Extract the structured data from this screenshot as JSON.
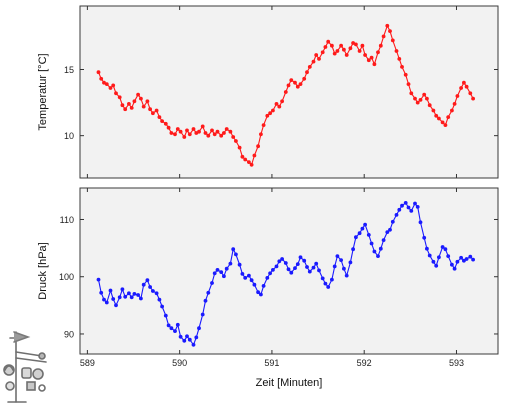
{
  "chart_data": [
    {
      "type": "line",
      "title": "",
      "ylabel": "Temperatur [°C]",
      "xlabel": "",
      "xlim": [
        588.92,
        593.45
      ],
      "ylim": [
        6.8,
        19.8
      ],
      "xticks": [
        589,
        590,
        591,
        592,
        593
      ],
      "yticks": [
        10,
        15
      ],
      "ytick_labels": [
        "10",
        "15"
      ],
      "grid": false,
      "series": [
        {
          "color": "#ff1a1a",
          "marker": "circle",
          "x": [
            589.12,
            589.15,
            589.18,
            589.21,
            589.25,
            589.28,
            589.31,
            589.35,
            589.38,
            589.41,
            589.45,
            589.48,
            589.51,
            589.55,
            589.58,
            589.61,
            589.65,
            589.68,
            589.71,
            589.75,
            589.78,
            589.81,
            589.85,
            589.88,
            589.91,
            589.95,
            589.98,
            590.01,
            590.05,
            590.08,
            590.11,
            590.15,
            590.18,
            590.21,
            590.25,
            590.28,
            590.31,
            590.35,
            590.38,
            590.41,
            590.45,
            590.48,
            590.51,
            590.55,
            590.58,
            590.61,
            590.65,
            590.68,
            590.71,
            590.75,
            590.78,
            590.81,
            590.85,
            590.88,
            590.91,
            590.95,
            590.98,
            591.01,
            591.05,
            591.08,
            591.11,
            591.15,
            591.18,
            591.21,
            591.25,
            591.28,
            591.31,
            591.35,
            591.38,
            591.41,
            591.45,
            591.48,
            591.51,
            591.55,
            591.58,
            591.61,
            591.65,
            591.68,
            591.71,
            591.75,
            591.78,
            591.81,
            591.85,
            591.88,
            591.91,
            591.95,
            591.98,
            592.01,
            592.05,
            592.08,
            592.11,
            592.15,
            592.18,
            592.21,
            592.25,
            592.28,
            592.31,
            592.35,
            592.38,
            592.41,
            592.45,
            592.48,
            592.51,
            592.55,
            592.58,
            592.61,
            592.65,
            592.68,
            592.71,
            592.75,
            592.78,
            592.81,
            592.85,
            592.88,
            592.91,
            592.95,
            592.98,
            593.01,
            593.05,
            593.08,
            593.11,
            593.15,
            593.18
          ],
          "y": [
            14.8,
            14.3,
            14.0,
            13.9,
            13.6,
            13.8,
            13.2,
            12.9,
            12.3,
            12.0,
            12.4,
            12.1,
            12.6,
            13.1,
            12.8,
            12.2,
            12.6,
            12.0,
            11.7,
            11.9,
            11.4,
            11.1,
            10.9,
            10.6,
            10.2,
            10.1,
            10.5,
            10.3,
            9.9,
            10.4,
            10.1,
            10.5,
            10.2,
            10.3,
            10.7,
            10.2,
            10.0,
            10.4,
            10.1,
            10.3,
            10.0,
            10.2,
            10.5,
            10.3,
            9.9,
            9.6,
            9.1,
            8.4,
            8.2,
            8.0,
            7.8,
            8.5,
            9.2,
            10.1,
            10.8,
            11.5,
            11.7,
            11.9,
            12.4,
            12.2,
            12.6,
            13.3,
            13.8,
            14.2,
            14.0,
            13.7,
            13.9,
            14.3,
            14.8,
            15.2,
            15.6,
            16.1,
            15.8,
            16.3,
            16.7,
            17.1,
            16.8,
            16.2,
            16.4,
            16.8,
            16.5,
            16.1,
            16.6,
            17.0,
            16.9,
            16.4,
            16.8,
            16.1,
            15.7,
            15.9,
            15.4,
            16.3,
            16.8,
            17.5,
            18.3,
            17.9,
            17.2,
            16.4,
            15.8,
            15.2,
            14.6,
            13.9,
            13.2,
            12.8,
            12.5,
            12.7,
            13.1,
            12.8,
            12.3,
            11.9,
            11.5,
            11.3,
            11.0,
            10.8,
            11.4,
            11.9,
            12.4,
            13.0,
            13.6,
            14.0,
            13.7,
            13.2,
            12.8
          ]
        }
      ]
    },
    {
      "type": "line",
      "title": "",
      "ylabel": "Druck [hPa]",
      "xlabel": "Zeit [Minuten]",
      "xlim": [
        588.92,
        593.45
      ],
      "ylim": [
        86.5,
        115.5
      ],
      "xticks": [
        589,
        590,
        591,
        592,
        593
      ],
      "xtick_labels": [
        "589",
        "590",
        "591",
        "592",
        "593"
      ],
      "yticks": [
        90,
        100,
        110
      ],
      "ytick_labels": [
        "90",
        "100",
        "110"
      ],
      "grid": false,
      "series": [
        {
          "color": "#1a1aff",
          "marker": "circle",
          "x": [
            589.12,
            589.15,
            589.18,
            589.21,
            589.25,
            589.28,
            589.31,
            589.35,
            589.38,
            589.41,
            589.45,
            589.48,
            589.51,
            589.55,
            589.58,
            589.61,
            589.65,
            589.68,
            589.71,
            589.75,
            589.78,
            589.81,
            589.85,
            589.88,
            589.91,
            589.95,
            589.98,
            590.01,
            590.05,
            590.08,
            590.11,
            590.15,
            590.18,
            590.21,
            590.25,
            590.28,
            590.31,
            590.35,
            590.38,
            590.41,
            590.45,
            590.48,
            590.51,
            590.55,
            590.58,
            590.61,
            590.65,
            590.68,
            590.71,
            590.75,
            590.78,
            590.81,
            590.85,
            590.88,
            590.91,
            590.95,
            590.98,
            591.01,
            591.05,
            591.08,
            591.11,
            591.15,
            591.18,
            591.21,
            591.25,
            591.28,
            591.31,
            591.35,
            591.38,
            591.41,
            591.45,
            591.48,
            591.51,
            591.55,
            591.58,
            591.61,
            591.65,
            591.68,
            591.71,
            591.75,
            591.78,
            591.81,
            591.85,
            591.88,
            591.91,
            591.95,
            591.98,
            592.01,
            592.05,
            592.08,
            592.11,
            592.15,
            592.18,
            592.21,
            592.25,
            592.28,
            592.31,
            592.35,
            592.38,
            592.41,
            592.45,
            592.48,
            592.51,
            592.55,
            592.58,
            592.61,
            592.65,
            592.68,
            592.71,
            592.75,
            592.78,
            592.81,
            592.85,
            592.88,
            592.91,
            592.95,
            592.98,
            593.01,
            593.05,
            593.08,
            593.11,
            593.15,
            593.18
          ],
          "y": [
            99.5,
            97.2,
            96.0,
            95.5,
            97.6,
            96.1,
            95.0,
            96.4,
            97.8,
            96.5,
            97.1,
            96.4,
            97.0,
            96.8,
            96.2,
            98.6,
            99.4,
            98.2,
            97.5,
            97.1,
            96.0,
            94.8,
            93.2,
            91.5,
            91.0,
            90.5,
            91.6,
            89.5,
            88.8,
            89.6,
            89.0,
            88.1,
            89.4,
            91.0,
            93.4,
            95.8,
            97.2,
            98.9,
            100.6,
            101.2,
            100.8,
            100.1,
            101.4,
            102.3,
            104.8,
            103.9,
            102.1,
            100.5,
            99.8,
            100.2,
            99.4,
            98.6,
            97.3,
            96.9,
            98.4,
            99.8,
            100.6,
            101.2,
            101.8,
            102.7,
            103.1,
            102.4,
            101.3,
            100.7,
            101.5,
            102.2,
            103.4,
            102.8,
            101.7,
            100.9,
            101.6,
            102.3,
            101.1,
            99.7,
            98.8,
            98.2,
            99.5,
            101.8,
            103.6,
            102.9,
            101.4,
            100.2,
            102.5,
            104.8,
            106.9,
            107.6,
            108.4,
            109.1,
            107.3,
            105.8,
            104.4,
            103.6,
            104.9,
            106.4,
            107.8,
            108.2,
            109.6,
            110.8,
            111.7,
            112.4,
            112.9,
            112.1,
            111.5,
            112.8,
            112.2,
            109.5,
            106.8,
            104.9,
            103.7,
            102.6,
            101.9,
            103.4,
            105.2,
            104.8,
            103.6,
            102.1,
            101.4,
            102.6,
            103.3,
            102.8,
            103.1,
            103.5,
            103.0
          ]
        }
      ]
    }
  ]
}
